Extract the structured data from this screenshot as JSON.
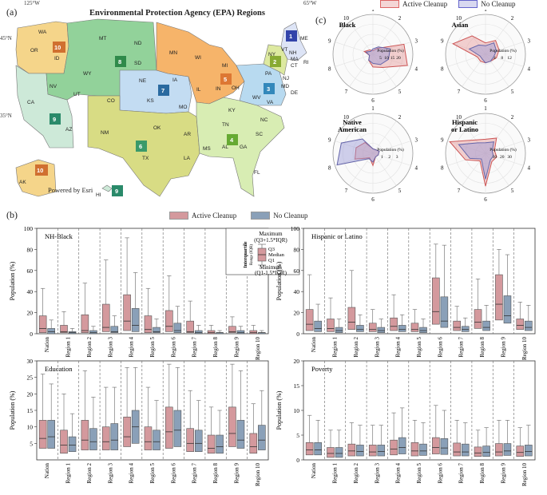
{
  "panel_labels": {
    "a": "(a)",
    "b": "(b)",
    "c": "(c)"
  },
  "map": {
    "title": "Environmental Protection Agency (EPA) Regions",
    "powered_by": "Powered by Esri",
    "coords": [
      "125°W",
      "65°W",
      "45°N",
      "35°N"
    ],
    "states": [
      "WA",
      "OR",
      "ID",
      "MT",
      "ND",
      "SD",
      "MN",
      "WI",
      "MI",
      "WY",
      "NE",
      "IA",
      "IL",
      "IN",
      "OH",
      "NY",
      "PA",
      "NV",
      "UT",
      "CO",
      "KS",
      "MO",
      "KY",
      "WV",
      "VA",
      "CA",
      "AZ",
      "NM",
      "OK",
      "AR",
      "TN",
      "NC",
      "SC",
      "TX",
      "LA",
      "MS",
      "AL",
      "GA",
      "FL",
      "AK",
      "HI",
      "ME",
      "VT",
      "NH",
      "MA",
      "RI",
      "CT",
      "NJ",
      "DE",
      "MD"
    ],
    "regions": [
      "1",
      "2",
      "3",
      "4",
      "5",
      "6",
      "7",
      "8",
      "9",
      "10",
      "10",
      "9"
    ],
    "colors": {
      "r1": "#3344aa",
      "r2": "#88aa33",
      "r3": "#3388bb",
      "r4": "#66aa33",
      "r5": "#dd7733",
      "r6": "#3a9a6a",
      "r7": "#2a6aa0",
      "r8": "#2f8a4a",
      "r9": "#2a8a6a",
      "r10": "#d07030"
    }
  },
  "legend": {
    "active": "Active Cleanup",
    "none": "No Cleanup",
    "active_color": "#d4999d",
    "none_color": "#8aa0b8"
  },
  "radar": {
    "axis_labels": [
      "1",
      "2",
      "3",
      "4",
      "5",
      "6",
      "7",
      "8",
      "9",
      "10"
    ],
    "tick_title": "Population (%)",
    "panels": [
      {
        "title": "Black",
        "ticks": [
          "5",
          "10",
          "15",
          "20"
        ],
        "max": 22,
        "active": [
          2,
          4,
          18,
          20,
          9,
          7,
          4,
          2,
          5,
          3
        ],
        "none": [
          3,
          5,
          10,
          9,
          7,
          5,
          4,
          2,
          4,
          2
        ]
      },
      {
        "title": "Asian",
        "ticks": [
          "4",
          "8",
          "12"
        ],
        "max": 14,
        "active": [
          4,
          6,
          5,
          4,
          3,
          3,
          3,
          3,
          12,
          8
        ],
        "none": [
          3,
          5,
          4,
          3,
          3,
          3,
          2,
          2,
          6,
          4
        ]
      },
      {
        "title": "Native American",
        "ticks": [
          "1",
          "2",
          "3"
        ],
        "max": 3.6,
        "active": [
          0.4,
          0.4,
          0.6,
          0.5,
          0.4,
          1.1,
          0.5,
          1.7,
          1.6,
          1.2
        ],
        "none": [
          0.4,
          0.4,
          0.6,
          0.5,
          0.4,
          0.8,
          0.6,
          3.4,
          3.0,
          1.6
        ]
      },
      {
        "title": "Hispanic or Latino",
        "ticks": [
          "10",
          "20",
          "30"
        ],
        "max": 34,
        "active": [
          12,
          16,
          8,
          10,
          9,
          28,
          8,
          18,
          32,
          14
        ],
        "none": [
          9,
          12,
          6,
          7,
          7,
          22,
          6,
          14,
          24,
          11
        ]
      }
    ]
  },
  "chart_data": [
    {
      "type": "box",
      "title": "NH-Black",
      "ylabel": "Population (%)",
      "ylim": [
        0,
        100
      ],
      "yticks": [
        0,
        20,
        40,
        60,
        80,
        100
      ],
      "categories": [
        "Nation",
        "Region 1",
        "Region 2",
        "Region 3",
        "Region 4",
        "Region 5",
        "Region 6",
        "Region 7",
        "Region 8",
        "Region 9",
        "Region 10"
      ],
      "series": [
        {
          "name": "Active Cleanup",
          "boxes": [
            [
              0,
              1,
              5,
              17,
              43
            ],
            [
              0,
              1,
              2,
              8,
              21
            ],
            [
              0,
              1,
              3,
              18,
              48
            ],
            [
              0,
              2,
              6,
              28,
              70
            ],
            [
              0,
              3,
              12,
              37,
              91
            ],
            [
              0,
              1,
              4,
              17,
              43
            ],
            [
              0,
              2,
              7,
              22,
              55
            ],
            [
              0,
              1,
              2,
              12,
              31
            ],
            [
              0,
              0,
              1,
              3,
              8
            ],
            [
              0,
              1,
              2,
              7,
              16
            ],
            [
              0,
              0,
              1,
              3,
              8
            ]
          ]
        },
        {
          "name": "No Cleanup",
          "boxes": [
            [
              0,
              0,
              2,
              5,
              13
            ],
            [
              0,
              0,
              1,
              2,
              5
            ],
            [
              0,
              0,
              1,
              3,
              7
            ],
            [
              0,
              1,
              2,
              7,
              17
            ],
            [
              0,
              2,
              8,
              24,
              58
            ],
            [
              0,
              1,
              2,
              6,
              14
            ],
            [
              0,
              1,
              3,
              10,
              26
            ],
            [
              0,
              0,
              1,
              3,
              8
            ],
            [
              0,
              0,
              1,
              1,
              3
            ],
            [
              0,
              0,
              1,
              3,
              7
            ],
            [
              0,
              0,
              1,
              1,
              3
            ]
          ]
        }
      ],
      "legend_box": {
        "maximum": "Maximum",
        "maximum_def": "(Q3+1.5*IQR)",
        "q3": "Q3",
        "median": "Median",
        "q1": "Q1",
        "iqr": "Interquartile",
        "iqr2": "Range (IQR)",
        "minimum": "Minimum",
        "minimum_def": "(Q1-1.5*IQR)"
      }
    },
    {
      "type": "box",
      "title": "Hispanic or Latino",
      "ylabel": "Population (%)",
      "ylim": [
        0,
        100
      ],
      "yticks": [
        0,
        20,
        40,
        60,
        80,
        100
      ],
      "categories": [
        "Nation",
        "Region 1",
        "Region 2",
        "Region 3",
        "Region 4",
        "Region 5",
        "Region 6",
        "Region 7",
        "Region 8",
        "Region 9",
        "Region 10"
      ],
      "series": [
        {
          "name": "Active Cleanup",
          "boxes": [
            [
              0,
              3,
              9,
              23,
              56
            ],
            [
              0,
              2,
              5,
              14,
              34
            ],
            [
              0,
              4,
              11,
              25,
              60
            ],
            [
              0,
              2,
              4,
              10,
              23
            ],
            [
              0,
              3,
              7,
              15,
              37
            ],
            [
              0,
              2,
              4,
              10,
              23
            ],
            [
              0,
              9,
              21,
              53,
              85
            ],
            [
              0,
              3,
              6,
              12,
              26
            ],
            [
              0,
              5,
              11,
              23,
              52
            ],
            [
              0,
              13,
              28,
              56,
              80
            ],
            [
              0,
              4,
              8,
              14,
              30
            ]
          ]
        },
        {
          "name": "No Cleanup",
          "boxes": [
            [
              0,
              2,
              5,
              12,
              28
            ],
            [
              0,
              1,
              3,
              6,
              14
            ],
            [
              0,
              2,
              4,
              8,
              18
            ],
            [
              0,
              1,
              3,
              6,
              14
            ],
            [
              0,
              2,
              4,
              8,
              18
            ],
            [
              0,
              1,
              3,
              6,
              14
            ],
            [
              0,
              6,
              12,
              35,
              84
            ],
            [
              0,
              2,
              4,
              7,
              15
            ],
            [
              0,
              3,
              6,
              12,
              27
            ],
            [
              0,
              10,
              17,
              36,
              75
            ],
            [
              0,
              3,
              6,
              12,
              27
            ]
          ]
        }
      ]
    },
    {
      "type": "box",
      "title": "Education",
      "ylabel": "Population (%)",
      "ylim": [
        0,
        30
      ],
      "yticks": [
        5,
        10,
        15,
        20,
        25,
        30
      ],
      "categories": [
        "Nation",
        "Region 1",
        "Region 2",
        "Region 3",
        "Region 4",
        "Region 5",
        "Region 6",
        "Region 7",
        "Region 8",
        "Region 9",
        "Region 10"
      ],
      "series": [
        {
          "name": "Active Cleanup",
          "boxes": [
            [
              0,
              3.5,
              6.5,
              12,
              26
            ],
            [
              0,
              2,
              4.5,
              9,
              20
            ],
            [
              0,
              3,
              6,
              12,
              27
            ],
            [
              0,
              3,
              5.5,
              10,
              22
            ],
            [
              0,
              4,
              7,
              13,
              28
            ],
            [
              0,
              3,
              5.5,
              10,
              22
            ],
            [
              0,
              3.5,
              8.5,
              16,
              29
            ],
            [
              0,
              2.5,
              5,
              9.5,
              21
            ],
            [
              0,
              2,
              3.5,
              7.5,
              16
            ],
            [
              0,
              4,
              8,
              16,
              29
            ],
            [
              0,
              2,
              4,
              8,
              17
            ]
          ]
        },
        {
          "name": "No Cleanup",
          "boxes": [
            [
              0,
              3.5,
              7,
              12,
              23
            ],
            [
              0,
              2.5,
              4.5,
              7,
              14
            ],
            [
              0,
              3,
              5.5,
              9.5,
              19
            ],
            [
              0,
              3,
              6,
              11,
              22
            ],
            [
              0,
              5,
              10,
              15,
              28
            ],
            [
              0,
              3,
              5.5,
              9,
              18
            ],
            [
              0,
              4,
              9,
              15,
              28
            ],
            [
              0,
              2.5,
              5,
              9,
              18
            ],
            [
              0,
              2,
              4,
              7.5,
              15
            ],
            [
              0,
              3.5,
              6,
              12,
              27
            ],
            [
              0,
              3,
              6,
              10.5,
              21
            ]
          ]
        }
      ]
    },
    {
      "type": "box",
      "title": "Poverty",
      "ylabel": "Population (%)",
      "ylim": [
        0,
        20
      ],
      "yticks": [
        0,
        5,
        10,
        15,
        20
      ],
      "categories": [
        "Nation",
        "Region 1",
        "Region 2",
        "Region 3",
        "Region 4",
        "Region 5",
        "Region 6",
        "Region 7",
        "Region 8",
        "Region 9",
        "Region 10"
      ],
      "series": [
        {
          "name": "Active Cleanup",
          "boxes": [
            [
              0,
              1,
              2,
              3.5,
              9
            ],
            [
              0,
              0.5,
              1.3,
              2.5,
              6
            ],
            [
              0,
              0.8,
              1.8,
              3.2,
              7.5
            ],
            [
              0,
              0.8,
              1.6,
              3,
              7
            ],
            [
              0,
              1,
              2.2,
              4,
              9.5
            ],
            [
              0,
              0.8,
              1.8,
              3.5,
              8
            ],
            [
              0,
              1.2,
              2.5,
              4.5,
              11
            ],
            [
              0,
              0.8,
              1.6,
              3.4,
              8
            ],
            [
              0,
              0.7,
              1.4,
              2.6,
              6
            ],
            [
              0,
              0.8,
              1.6,
              3.3,
              8
            ],
            [
              0,
              0.7,
              1.5,
              2.8,
              6.5
            ]
          ]
        },
        {
          "name": "No Cleanup",
          "boxes": [
            [
              0,
              1,
              2,
              3.5,
              8
            ],
            [
              0,
              0.5,
              1.3,
              2.5,
              6
            ],
            [
              0,
              0.8,
              1.7,
              3,
              7
            ],
            [
              0,
              0.8,
              1.7,
              3,
              7
            ],
            [
              0,
              1.2,
              2.5,
              4.5,
              10.5
            ],
            [
              0,
              0.9,
              1.8,
              3.2,
              7.5
            ],
            [
              0,
              1.1,
              2.4,
              4.3,
              10
            ],
            [
              0,
              0.8,
              1.6,
              3.2,
              7.5
            ],
            [
              0,
              0.7,
              1.5,
              2.8,
              6.5
            ],
            [
              0,
              0.9,
              1.8,
              3.3,
              8
            ],
            [
              0,
              0.8,
              1.7,
              3,
              7
            ]
          ]
        }
      ]
    }
  ]
}
